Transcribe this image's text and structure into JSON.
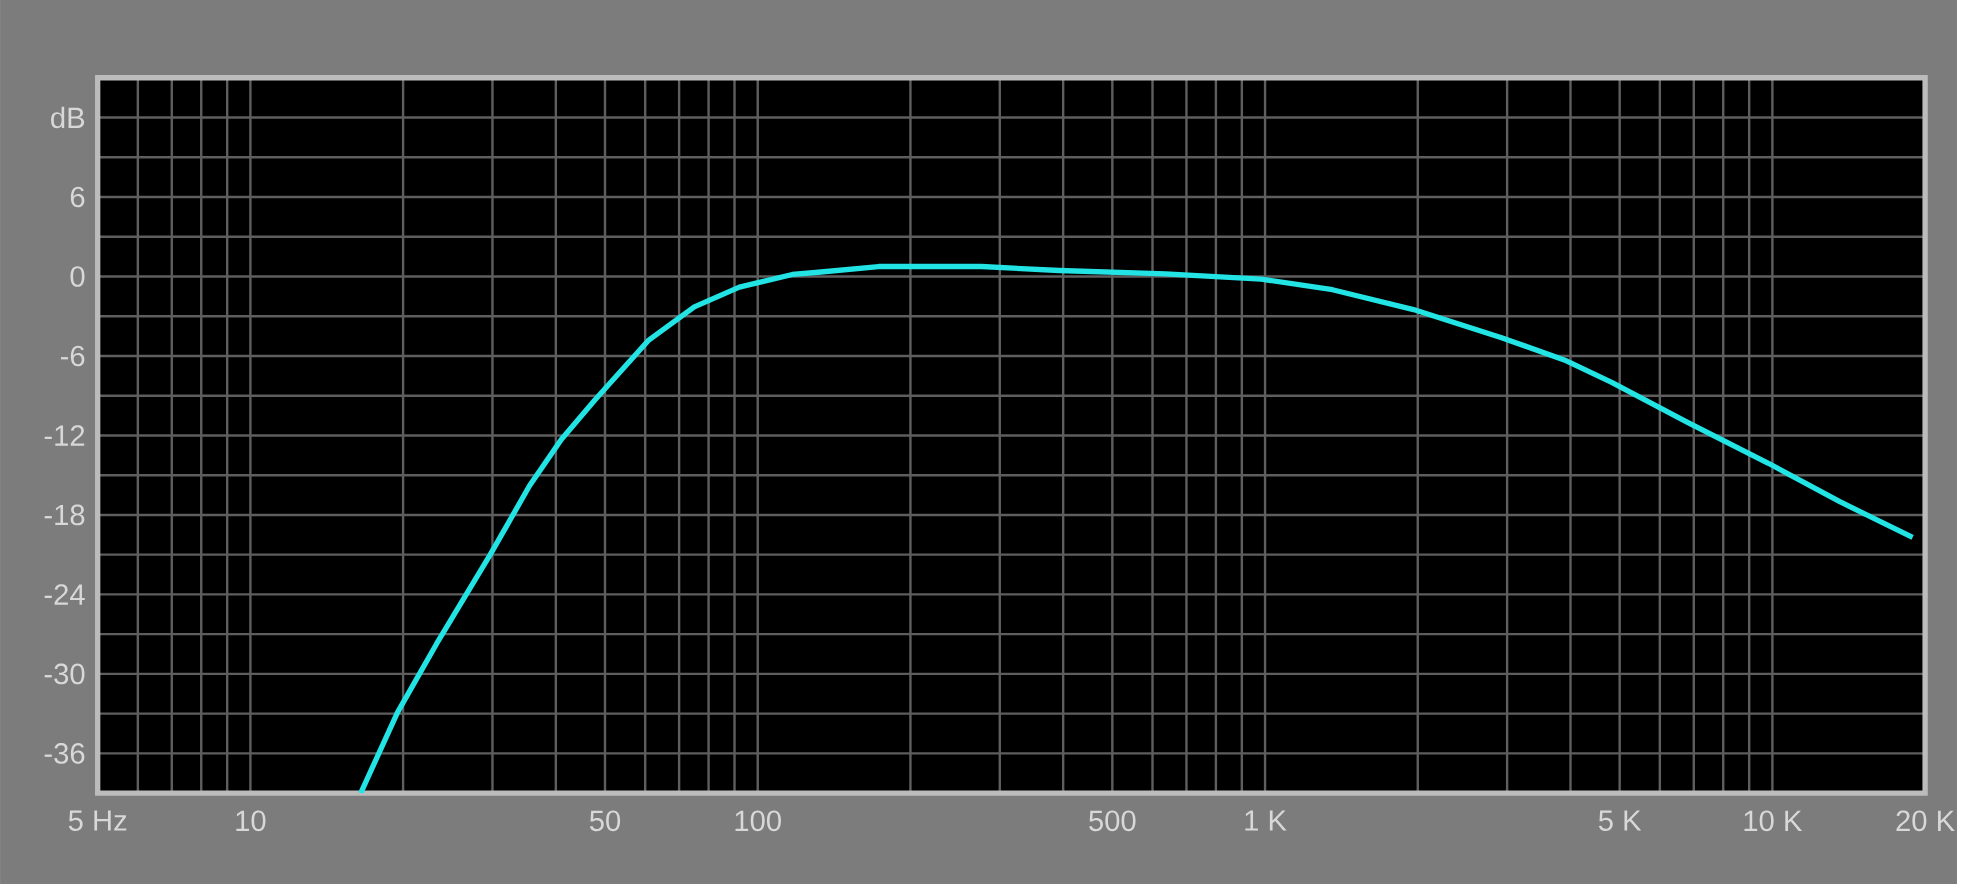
{
  "chart_data": {
    "type": "line",
    "log": "x",
    "grid": true,
    "xlim": [
      5,
      20000
    ],
    "ylim": [
      -39,
      15
    ],
    "xticks": [
      {
        "value": 5,
        "label": "5 Hz"
      },
      {
        "value": 6,
        "label": null
      },
      {
        "value": 7,
        "label": null
      },
      {
        "value": 8,
        "label": null
      },
      {
        "value": 9,
        "label": null
      },
      10,
      {
        "value": 20,
        "label": null
      },
      {
        "value": 30,
        "label": null
      },
      {
        "value": 40,
        "label": null
      },
      50,
      {
        "value": 60,
        "label": null
      },
      {
        "value": 70,
        "label": null
      },
      {
        "value": 80,
        "label": null
      },
      {
        "value": 90,
        "label": null
      },
      100,
      {
        "value": 200,
        "label": null
      },
      {
        "value": 300,
        "label": null
      },
      {
        "value": 400,
        "label": null
      },
      500,
      {
        "value": 600,
        "label": null
      },
      {
        "value": 700,
        "label": null
      },
      {
        "value": 800,
        "label": null
      },
      {
        "value": 900,
        "label": null
      },
      {
        "value": 1000,
        "label": "1 K"
      },
      {
        "value": 2000,
        "label": null
      },
      {
        "value": 3000,
        "label": null
      },
      {
        "value": 4000,
        "label": null
      },
      {
        "value": 5000,
        "label": "5 K"
      },
      {
        "value": 6000,
        "label": null
      },
      {
        "value": 7000,
        "label": null
      },
      {
        "value": 8000,
        "label": null
      },
      {
        "value": 9000,
        "label": null
      },
      {
        "value": 10000,
        "label": "10 K"
      },
      {
        "value": 20000,
        "label": "20 K"
      }
    ],
    "yticks": [
      -36,
      {
        "value": -33,
        "label": null
      },
      -30,
      {
        "value": -27,
        "label": null
      },
      -24,
      {
        "value": -21,
        "label": null
      },
      -18,
      {
        "value": -15,
        "label": null
      },
      -12,
      {
        "value": -9,
        "label": null
      },
      -6,
      {
        "value": -3,
        "label": null
      },
      0,
      {
        "value": 3,
        "label": null
      },
      6,
      {
        "value": 9,
        "label": null
      },
      {
        "value": 12,
        "label": "dB"
      }
    ],
    "x": [
      16.5,
      19.5,
      23.3,
      29.7,
      35.5,
      41,
      47.8,
      61,
      75,
      92,
      117,
      130,
      173,
      276,
      393,
      637,
      982,
      1358,
      1962,
      2916,
      3889,
      4822,
      6790,
      9820,
      13580,
      18900
    ],
    "series": [
      {
        "color": "#22e4e4",
        "values": [
          -39,
          -32.9,
          -27.7,
          -21,
          -15.8,
          -12.3,
          -9.3,
          -4.8,
          -2.3,
          -0.8,
          0.15,
          0.3,
          0.75,
          0.75,
          0.45,
          0.2,
          -0.2,
          -1.0,
          -2.5,
          -4.6,
          -6.3,
          -8.0,
          -11,
          -14.1,
          -17,
          -19.7
        ]
      }
    ]
  }
}
